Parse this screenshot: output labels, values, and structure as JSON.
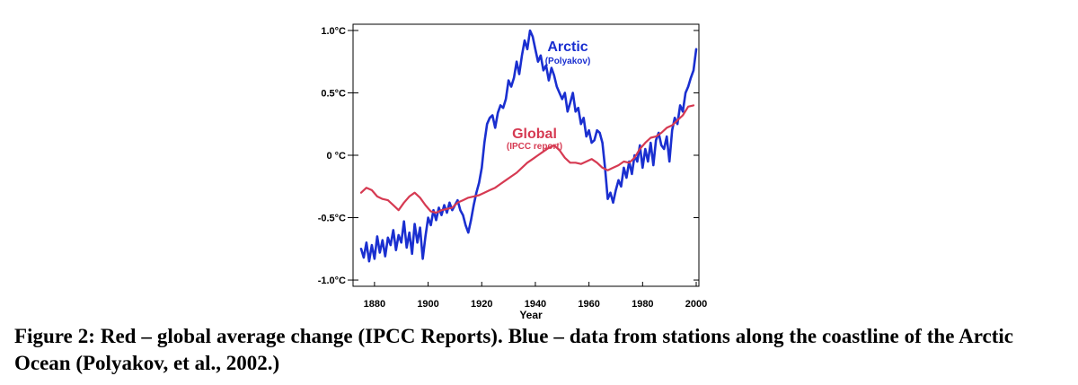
{
  "chart_data": {
    "type": "line",
    "xlabel": "Year",
    "ylabel": "",
    "xlim": [
      1872,
      2001
    ],
    "ylim": [
      -1.05,
      1.05
    ],
    "x_ticks": [
      1880,
      1900,
      1920,
      1940,
      1960,
      1980,
      2000
    ],
    "y_ticks": [
      {
        "value": 1.0,
        "label": "1.0°C"
      },
      {
        "value": 0.5,
        "label": "0.5°C"
      },
      {
        "value": 0.0,
        "label": "0 °C"
      },
      {
        "value": -0.5,
        "label": "-0.5°C"
      },
      {
        "value": -1.0,
        "label": "-1.0°C"
      }
    ],
    "grid": false,
    "series": [
      {
        "name": "Arctic",
        "sublabel": "(Polyakov)",
        "color": "#1a2fd0",
        "x": [
          1875,
          1876,
          1877,
          1878,
          1879,
          1880,
          1881,
          1882,
          1883,
          1884,
          1885,
          1886,
          1887,
          1888,
          1889,
          1890,
          1891,
          1892,
          1893,
          1894,
          1895,
          1896,
          1897,
          1898,
          1899,
          1900,
          1901,
          1902,
          1903,
          1904,
          1905,
          1906,
          1907,
          1908,
          1909,
          1910,
          1911,
          1912,
          1913,
          1914,
          1915,
          1916,
          1917,
          1918,
          1919,
          1920,
          1921,
          1922,
          1923,
          1924,
          1925,
          1926,
          1927,
          1928,
          1929,
          1930,
          1931,
          1932,
          1933,
          1934,
          1935,
          1936,
          1937,
          1938,
          1939,
          1940,
          1941,
          1942,
          1943,
          1944,
          1945,
          1946,
          1947,
          1948,
          1949,
          1950,
          1951,
          1952,
          1953,
          1954,
          1955,
          1956,
          1957,
          1958,
          1959,
          1960,
          1961,
          1962,
          1963,
          1964,
          1965,
          1966,
          1967,
          1968,
          1969,
          1970,
          1971,
          1972,
          1973,
          1974,
          1975,
          1976,
          1977,
          1978,
          1979,
          1980,
          1981,
          1982,
          1983,
          1984,
          1985,
          1986,
          1987,
          1988,
          1989,
          1990,
          1991,
          1992,
          1993,
          1994,
          1995,
          1996,
          1997,
          1998,
          1999,
          2000
        ],
        "values": [
          -0.75,
          -0.82,
          -0.7,
          -0.85,
          -0.72,
          -0.83,
          -0.65,
          -0.78,
          -0.68,
          -0.81,
          -0.66,
          -0.72,
          -0.6,
          -0.76,
          -0.64,
          -0.7,
          -0.53,
          -0.74,
          -0.62,
          -0.79,
          -0.55,
          -0.7,
          -0.58,
          -0.83,
          -0.65,
          -0.5,
          -0.56,
          -0.44,
          -0.52,
          -0.42,
          -0.48,
          -0.4,
          -0.46,
          -0.38,
          -0.44,
          -0.4,
          -0.36,
          -0.44,
          -0.48,
          -0.56,
          -0.62,
          -0.52,
          -0.4,
          -0.3,
          -0.22,
          -0.1,
          0.1,
          0.25,
          0.3,
          0.32,
          0.22,
          0.34,
          0.4,
          0.38,
          0.45,
          0.6,
          0.55,
          0.62,
          0.75,
          0.65,
          0.8,
          0.92,
          0.85,
          1.0,
          0.95,
          0.85,
          0.75,
          0.8,
          0.68,
          0.72,
          0.6,
          0.7,
          0.64,
          0.55,
          0.5,
          0.45,
          0.5,
          0.35,
          0.42,
          0.5,
          0.35,
          0.38,
          0.25,
          0.3,
          0.15,
          0.2,
          0.1,
          0.12,
          0.2,
          0.18,
          0.1,
          -0.1,
          -0.35,
          -0.3,
          -0.38,
          -0.28,
          -0.2,
          -0.25,
          -0.1,
          -0.18,
          -0.05,
          -0.15,
          0.0,
          -0.05,
          0.08,
          -0.1,
          0.05,
          -0.05,
          0.1,
          -0.08,
          0.12,
          0.18,
          0.08,
          0.05,
          0.15,
          -0.05,
          0.2,
          0.3,
          0.25,
          0.4,
          0.35,
          0.5,
          0.55,
          0.62,
          0.68,
          0.85
        ]
      },
      {
        "name": "Global",
        "sublabel": "(IPCC report)",
        "color": "#d63a52",
        "x": [
          1875,
          1877,
          1879,
          1881,
          1883,
          1885,
          1887,
          1889,
          1891,
          1893,
          1895,
          1897,
          1899,
          1901,
          1903,
          1905,
          1907,
          1909,
          1911,
          1913,
          1915,
          1917,
          1919,
          1921,
          1923,
          1925,
          1927,
          1929,
          1931,
          1933,
          1935,
          1937,
          1939,
          1941,
          1943,
          1945,
          1947,
          1949,
          1951,
          1953,
          1955,
          1957,
          1959,
          1961,
          1963,
          1965,
          1967,
          1969,
          1971,
          1973,
          1975,
          1977,
          1979,
          1981,
          1983,
          1985,
          1987,
          1989,
          1991,
          1993,
          1995,
          1997,
          1999
        ],
        "values": [
          -0.3,
          -0.26,
          -0.28,
          -0.33,
          -0.35,
          -0.36,
          -0.4,
          -0.44,
          -0.38,
          -0.33,
          -0.3,
          -0.34,
          -0.4,
          -0.45,
          -0.46,
          -0.44,
          -0.43,
          -0.42,
          -0.38,
          -0.36,
          -0.34,
          -0.33,
          -0.32,
          -0.3,
          -0.28,
          -0.26,
          -0.23,
          -0.2,
          -0.17,
          -0.14,
          -0.1,
          -0.06,
          -0.03,
          0.0,
          0.03,
          0.06,
          0.08,
          0.04,
          -0.02,
          -0.06,
          -0.06,
          -0.07,
          -0.05,
          -0.03,
          -0.06,
          -0.1,
          -0.12,
          -0.1,
          -0.08,
          -0.05,
          -0.06,
          -0.02,
          0.05,
          0.1,
          0.14,
          0.15,
          0.18,
          0.22,
          0.24,
          0.28,
          0.32,
          0.39,
          0.4
        ]
      }
    ]
  },
  "caption": "Figure 2: Red – global average change (IPCC Reports). Blue – data from stations along the coastline of the Arctic Ocean (Polyakov, et al., 2002.)"
}
